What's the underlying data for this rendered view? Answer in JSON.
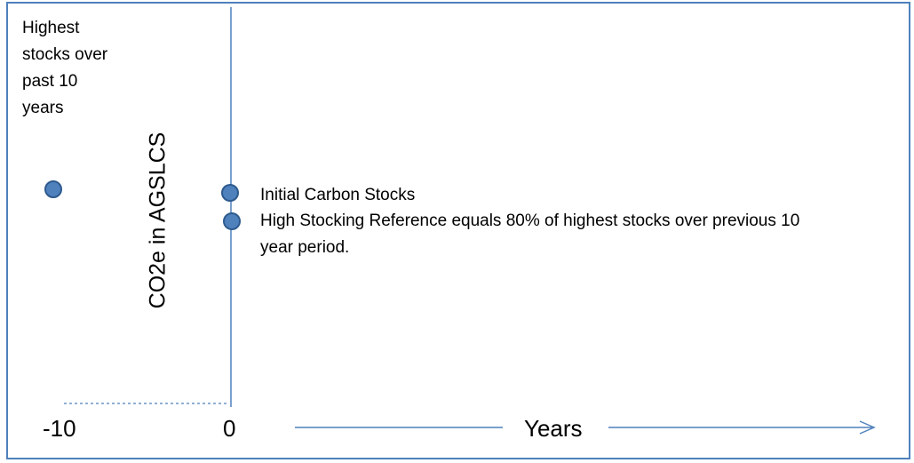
{
  "chart_data": {
    "type": "scatter",
    "ylabel": "CO2e in AGSLCS",
    "xlabel": "Years",
    "x_ticks": [
      "-10",
      "0"
    ],
    "points": [
      {
        "x": -10,
        "label": "Highest stocks over past 10 years"
      },
      {
        "x": 0,
        "label": "Initial Carbon Stocks"
      },
      {
        "x": 0,
        "label": "High Stocking Reference equals 80% of highest stocks over previous 10 year period."
      }
    ]
  },
  "labels": {
    "highest_stocks": "Highest stocks over past 10 years",
    "initial_stocks": "Initial Carbon Stocks",
    "high_ref_line1": "High Stocking Reference equals 80% of highest stocks over previous 10",
    "high_ref_line2": "year period."
  },
  "colors": {
    "frame": "#4f81bd",
    "axis": "#4f81bd",
    "marker_fill": "#4f81bd",
    "marker_stroke": "#2e5a8e"
  }
}
